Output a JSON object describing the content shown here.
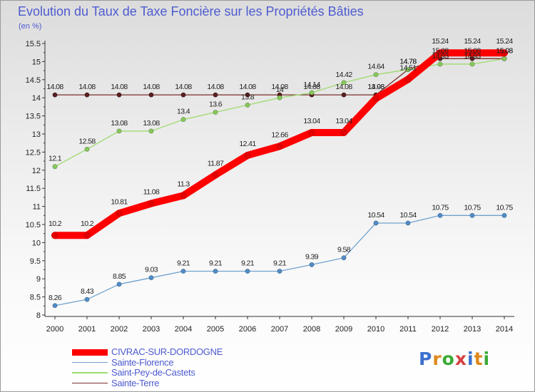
{
  "header": {
    "title": "Evolution du Taux de Taxe Foncière sur les Propriétés Bâties",
    "unit": "(en %)"
  },
  "logo": {
    "text": "Proxiti",
    "letter_colors": [
      "#3b6fcf",
      "#e0881b",
      "#3aaa35",
      "#d64040",
      "#3b6fcf",
      "#e0881b",
      "#3aaa35"
    ]
  },
  "chart_data": {
    "type": "line",
    "title": "Evolution du Taux de Taxe Foncière sur les Propriétés Bâties",
    "ylabel": "(en %)",
    "xlabel": "",
    "ylim": [
      8,
      15.5
    ],
    "ytick_step": 0.5,
    "grid": false,
    "legend_position": "bottom-left",
    "x": [
      "2000",
      "2001",
      "2002",
      "2003",
      "2004",
      "2005",
      "2006",
      "2007",
      "2008",
      "2009",
      "2010",
      "2011",
      "2012",
      "2013",
      "2014"
    ],
    "series": [
      {
        "name": "Sainte-Terre",
        "color": "#7a2e2e",
        "marker": "#5a1f1f",
        "values": [
          14.08,
          14.08,
          14.08,
          14.08,
          14.08,
          14.08,
          14.08,
          14.08,
          14.08,
          14.08,
          14.08,
          14.78,
          15.08,
          15.08,
          15.08
        ]
      },
      {
        "name": "Saint-Pey-de-Castets",
        "color": "#9edb6e",
        "marker": "#86c95a",
        "values": [
          12.1,
          12.58,
          13.08,
          13.08,
          13.4,
          13.6,
          13.8,
          14.0,
          14.14,
          14.42,
          14.64,
          14.78,
          14.93,
          14.93,
          15.08
        ]
      },
      {
        "name": "Sainte-Florence",
        "color": "#6fa2d0",
        "marker": "#4e8cc8",
        "values": [
          8.26,
          8.43,
          8.85,
          9.03,
          9.21,
          9.21,
          9.21,
          9.21,
          9.39,
          9.58,
          10.54,
          10.54,
          10.75,
          10.75,
          10.75
        ]
      },
      {
        "name": "CIVRAC-SUR-DORDOGNE",
        "color": "#ff0000",
        "marker": "#e00000",
        "values": [
          10.2,
          10.2,
          10.81,
          11.08,
          11.3,
          11.87,
          12.41,
          12.66,
          13.04,
          13.04,
          13.98,
          14.51,
          15.24,
          15.24,
          15.24
        ]
      }
    ],
    "annotations": [
      {
        "series": "Sainte-Terre",
        "labels": [
          "14.08",
          "14.08",
          "14.08",
          "14.08",
          "14.08",
          "14.08",
          "14.08",
          "14.08",
          "14.08",
          "14.08",
          "14.08",
          "14.78",
          "15.08",
          "15.08",
          "15.08"
        ]
      },
      {
        "series": "Saint-Pey-de-Castets",
        "labels": [
          "12.1",
          "12.58",
          "13.08",
          "13.08",
          "13.4",
          "13.6",
          "13.8",
          "14",
          "14.14",
          "14.42",
          "14.64",
          "14.78",
          "14.93",
          "14.93",
          "15.08"
        ]
      },
      {
        "series": "Sainte-Florence",
        "labels": [
          "8.26",
          "8.43",
          "8.85",
          "9.03",
          "9.21",
          "9.21",
          "9.21",
          "9.21",
          "9.39",
          "9.58",
          "10.54",
          "10.54",
          "10.75",
          "10.75",
          "10.75"
        ]
      },
      {
        "series": "CIVRAC-SUR-DORDOGNE",
        "labels": [
          "10.2",
          "10.2",
          "10.81",
          "11.08",
          "11.3",
          "11.87",
          "12.41",
          "12.66",
          "13.04",
          "13.04",
          "13.98",
          "14.51",
          "15.24",
          "15.24",
          "15.24"
        ]
      }
    ]
  },
  "legend": [
    {
      "label": "CIVRAC-SUR-DORDOGNE",
      "color": "#ff0000"
    },
    {
      "label": "Sainte-Florence",
      "color": "#6fa2d0"
    },
    {
      "label": "Saint-Pey-de-Castets",
      "color": "#9edb6e"
    },
    {
      "label": "Sainte-Terre",
      "color": "#7a2e2e"
    }
  ]
}
